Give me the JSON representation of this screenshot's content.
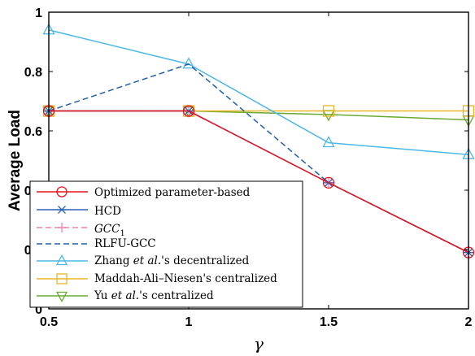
{
  "chart_data": {
    "type": "line",
    "title": "",
    "xlabel": "γ",
    "ylabel": "Average Load",
    "xlim": [
      0.5,
      2
    ],
    "ylim": [
      0,
      1
    ],
    "x_ticks": [
      "0.5",
      "1",
      "1.5",
      "2"
    ],
    "y_ticks": [
      "0",
      "0.2",
      "0.4",
      "0.6",
      "0.8",
      "1"
    ],
    "grid": false,
    "legend_position": "bottom-left",
    "series": [
      {
        "name": "Optimized parameter-based",
        "marker": "circle",
        "color": "#e8141e",
        "dash": "solid",
        "x": [
          0.5,
          1,
          1.5,
          2
        ],
        "y": [
          0.667,
          0.667,
          0.425,
          0.19
        ]
      },
      {
        "name": "HCD",
        "marker": "asterisk",
        "color": "#2c62b8",
        "dash": "solid",
        "x": [
          0.5,
          1,
          1.5,
          2
        ],
        "y": [
          0.667,
          0.667,
          0.425,
          0.19
        ]
      },
      {
        "name": "GCC1",
        "marker": "plus",
        "color": "#f07fae",
        "dash": "dashed",
        "x": [
          0.5,
          1,
          1.5,
          2
        ],
        "y": [
          0.667,
          0.667,
          0.425,
          0.19
        ]
      },
      {
        "name": "RLFU-GCC",
        "marker": "none",
        "color": "#1f5fa8",
        "dash": "dashed",
        "x": [
          0.5,
          1,
          1.5,
          2
        ],
        "y": [
          0.667,
          0.825,
          0.425,
          0.19
        ]
      },
      {
        "name": "Zhang et al.'s decentralized",
        "marker": "triangle-up",
        "color": "#4cb8e6",
        "dash": "solid",
        "x": [
          0.5,
          1,
          1.5,
          2
        ],
        "y": [
          0.94,
          0.825,
          0.56,
          0.52
        ]
      },
      {
        "name": "Maddah-Ali–Niesen's centralized",
        "marker": "square",
        "color": "#e8b528",
        "dash": "solid",
        "x": [
          0.5,
          1,
          1.5,
          2
        ],
        "y": [
          0.667,
          0.667,
          0.667,
          0.667
        ]
      },
      {
        "name": "Yu et al.'s centralized",
        "marker": "triangle-down",
        "color": "#6aa832",
        "dash": "solid",
        "x": [
          0.5,
          1,
          1.5,
          2
        ],
        "y": [
          0.667,
          0.667,
          0.655,
          0.637
        ]
      }
    ]
  },
  "legend": {
    "items": [
      {
        "label": "Optimized parameter-based"
      },
      {
        "label": "HCD"
      },
      {
        "label_base": "GCC",
        "label_sub": "1"
      },
      {
        "label": "RLFU-GCC"
      },
      {
        "label_pre": "Zhang ",
        "label_em": "et al.",
        "label_post": "'s decentralized"
      },
      {
        "label": "Maddah-Ali–Niesen's centralized"
      },
      {
        "label_pre": "Yu ",
        "label_em": "et al.",
        "label_post": "'s centralized"
      }
    ]
  }
}
